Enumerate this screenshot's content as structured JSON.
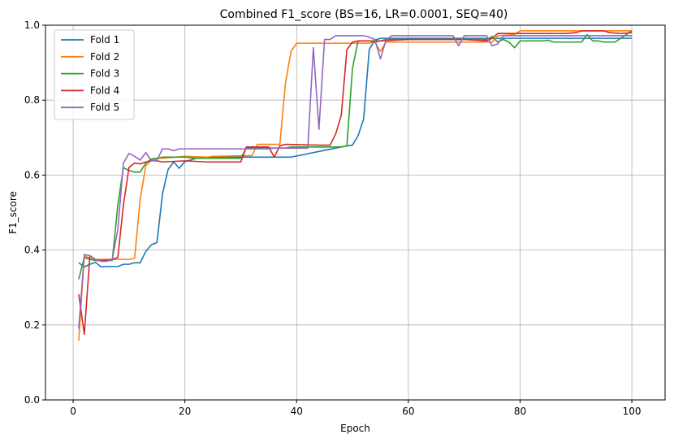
{
  "chart_data": {
    "type": "line",
    "title": "Combined F1_score (BS=16, LR=0.0001, SEQ=40)",
    "xlabel": "Epoch",
    "ylabel": "F1_score",
    "xlim": [
      -4.95,
      105.95
    ],
    "ylim": [
      0.0,
      1.0
    ],
    "xticks": [
      0,
      20,
      40,
      60,
      80,
      100
    ],
    "yticks": [
      0.0,
      0.2,
      0.4,
      0.6,
      0.8,
      1.0
    ],
    "xtick_labels": [
      "0",
      "20",
      "40",
      "60",
      "80",
      "100"
    ],
    "ytick_labels": [
      "0.0",
      "0.2",
      "0.4",
      "0.6",
      "0.8",
      "1.0"
    ],
    "grid": true,
    "legend_position": "top-left",
    "series": [
      {
        "name": "Fold 1",
        "color": "#1f77b4",
        "points": [
          [
            1,
            0.366
          ],
          [
            2,
            0.355
          ],
          [
            3,
            0.362
          ],
          [
            4,
            0.367
          ],
          [
            5,
            0.355
          ],
          [
            6,
            0.356
          ],
          [
            7,
            0.356
          ],
          [
            8,
            0.356
          ],
          [
            9,
            0.362
          ],
          [
            10,
            0.362
          ],
          [
            11,
            0.366
          ],
          [
            12,
            0.366
          ],
          [
            13,
            0.396
          ],
          [
            14,
            0.414
          ],
          [
            15,
            0.42
          ],
          [
            16,
            0.55
          ],
          [
            17,
            0.615
          ],
          [
            18,
            0.635
          ],
          [
            19,
            0.618
          ],
          [
            20,
            0.636
          ],
          [
            21,
            0.64
          ],
          [
            22,
            0.645
          ],
          [
            23,
            0.648
          ],
          [
            24,
            0.648
          ],
          [
            30,
            0.648
          ],
          [
            38,
            0.648
          ],
          [
            39,
            0.648
          ],
          [
            49,
            0.678
          ],
          [
            50,
            0.68
          ],
          [
            51,
            0.705
          ],
          [
            52,
            0.75
          ],
          [
            53,
            0.935
          ],
          [
            54,
            0.96
          ],
          [
            55,
            0.965
          ],
          [
            70,
            0.965
          ],
          [
            75,
            0.965
          ],
          [
            78,
            0.965
          ],
          [
            80,
            0.965
          ],
          [
            90,
            0.965
          ],
          [
            100,
            0.965
          ]
        ]
      },
      {
        "name": "Fold 2",
        "color": "#ff7f0e",
        "points": [
          [
            1,
            0.158
          ],
          [
            2,
            0.385
          ],
          [
            3,
            0.378
          ],
          [
            4,
            0.375
          ],
          [
            5,
            0.375
          ],
          [
            8,
            0.375
          ],
          [
            9,
            0.375
          ],
          [
            10,
            0.375
          ],
          [
            11,
            0.378
          ],
          [
            12,
            0.535
          ],
          [
            13,
            0.625
          ],
          [
            14,
            0.64
          ],
          [
            15,
            0.645
          ],
          [
            16,
            0.645
          ],
          [
            20,
            0.65
          ],
          [
            24,
            0.648
          ],
          [
            25,
            0.65
          ],
          [
            32,
            0.652
          ],
          [
            33,
            0.682
          ],
          [
            37,
            0.682
          ],
          [
            38,
            0.845
          ],
          [
            39,
            0.93
          ],
          [
            40,
            0.952
          ],
          [
            45,
            0.952
          ],
          [
            53,
            0.952
          ],
          [
            54,
            0.955
          ],
          [
            55,
            0.93
          ],
          [
            56,
            0.955
          ],
          [
            60,
            0.955
          ],
          [
            75,
            0.955
          ],
          [
            76,
            0.972
          ],
          [
            79,
            0.975
          ],
          [
            80,
            0.985
          ],
          [
            95,
            0.985
          ],
          [
            100,
            0.985
          ]
        ]
      },
      {
        "name": "Fold 3",
        "color": "#2ca02c",
        "points": [
          [
            1,
            0.322
          ],
          [
            2,
            0.38
          ],
          [
            3,
            0.375
          ],
          [
            4,
            0.372
          ],
          [
            5,
            0.372
          ],
          [
            6,
            0.372
          ],
          [
            7,
            0.372
          ],
          [
            8,
            0.52
          ],
          [
            9,
            0.62
          ],
          [
            10,
            0.612
          ],
          [
            11,
            0.608
          ],
          [
            12,
            0.608
          ],
          [
            13,
            0.632
          ],
          [
            14,
            0.643
          ],
          [
            15,
            0.645
          ],
          [
            16,
            0.648
          ],
          [
            20,
            0.648
          ],
          [
            22,
            0.645
          ],
          [
            25,
            0.645
          ],
          [
            30,
            0.645
          ],
          [
            31,
            0.672
          ],
          [
            38,
            0.672
          ],
          [
            39,
            0.675
          ],
          [
            48,
            0.675
          ],
          [
            49,
            0.678
          ],
          [
            50,
            0.885
          ],
          [
            51,
            0.958
          ],
          [
            55,
            0.958
          ],
          [
            56,
            0.962
          ],
          [
            65,
            0.962
          ],
          [
            74,
            0.962
          ],
          [
            75,
            0.97
          ],
          [
            76,
            0.955
          ],
          [
            77,
            0.962
          ],
          [
            78,
            0.955
          ],
          [
            79,
            0.94
          ],
          [
            80,
            0.958
          ],
          [
            84,
            0.958
          ],
          [
            85,
            0.96
          ],
          [
            86,
            0.955
          ],
          [
            90,
            0.955
          ],
          [
            91,
            0.955
          ],
          [
            92,
            0.975
          ],
          [
            93,
            0.958
          ],
          [
            94,
            0.958
          ],
          [
            95,
            0.955
          ],
          [
            97,
            0.955
          ],
          [
            99,
            0.975
          ],
          [
            100,
            0.985
          ]
        ]
      },
      {
        "name": "Fold 4",
        "color": "#d62728",
        "points": [
          [
            1,
            0.282
          ],
          [
            2,
            0.175
          ],
          [
            3,
            0.385
          ],
          [
            4,
            0.375
          ],
          [
            5,
            0.372
          ],
          [
            7,
            0.375
          ],
          [
            8,
            0.38
          ],
          [
            9,
            0.52
          ],
          [
            10,
            0.62
          ],
          [
            11,
            0.632
          ],
          [
            12,
            0.63
          ],
          [
            13,
            0.635
          ],
          [
            14,
            0.638
          ],
          [
            15,
            0.638
          ],
          [
            16,
            0.635
          ],
          [
            20,
            0.638
          ],
          [
            24,
            0.635
          ],
          [
            30,
            0.635
          ],
          [
            31,
            0.675
          ],
          [
            35,
            0.675
          ],
          [
            36,
            0.648
          ],
          [
            37,
            0.678
          ],
          [
            38,
            0.682
          ],
          [
            44,
            0.68
          ],
          [
            46,
            0.68
          ],
          [
            47,
            0.71
          ],
          [
            48,
            0.76
          ],
          [
            49,
            0.935
          ],
          [
            50,
            0.955
          ],
          [
            51,
            0.958
          ],
          [
            53,
            0.958
          ],
          [
            54,
            0.955
          ],
          [
            55,
            0.958
          ],
          [
            60,
            0.962
          ],
          [
            70,
            0.962
          ],
          [
            74,
            0.958
          ],
          [
            75,
            0.965
          ],
          [
            76,
            0.978
          ],
          [
            80,
            0.978
          ],
          [
            88,
            0.978
          ],
          [
            90,
            0.98
          ],
          [
            91,
            0.985
          ],
          [
            95,
            0.985
          ],
          [
            96,
            0.98
          ],
          [
            98,
            0.978
          ],
          [
            100,
            0.98
          ]
        ]
      },
      {
        "name": "Fold 5",
        "color": "#9467bd",
        "points": [
          [
            1,
            0.19
          ],
          [
            2,
            0.388
          ],
          [
            3,
            0.385
          ],
          [
            4,
            0.375
          ],
          [
            5,
            0.37
          ],
          [
            6,
            0.37
          ],
          [
            7,
            0.375
          ],
          [
            8,
            0.455
          ],
          [
            9,
            0.632
          ],
          [
            10,
            0.658
          ],
          [
            11,
            0.65
          ],
          [
            12,
            0.64
          ],
          [
            13,
            0.66
          ],
          [
            14,
            0.638
          ],
          [
            15,
            0.64
          ],
          [
            16,
            0.67
          ],
          [
            17,
            0.67
          ],
          [
            18,
            0.665
          ],
          [
            19,
            0.67
          ],
          [
            20,
            0.67
          ],
          [
            30,
            0.67
          ],
          [
            31,
            0.67
          ],
          [
            35,
            0.67
          ],
          [
            36,
            0.672
          ],
          [
            42,
            0.672
          ],
          [
            43,
            0.94
          ],
          [
            44,
            0.722
          ],
          [
            45,
            0.962
          ],
          [
            46,
            0.962
          ],
          [
            47,
            0.972
          ],
          [
            50,
            0.972
          ],
          [
            52,
            0.972
          ],
          [
            53,
            0.968
          ],
          [
            54,
            0.962
          ],
          [
            55,
            0.91
          ],
          [
            56,
            0.96
          ],
          [
            57,
            0.972
          ],
          [
            60,
            0.972
          ],
          [
            66,
            0.972
          ],
          [
            68,
            0.972
          ],
          [
            69,
            0.945
          ],
          [
            70,
            0.972
          ],
          [
            74,
            0.972
          ],
          [
            75,
            0.945
          ],
          [
            76,
            0.95
          ],
          [
            77,
            0.972
          ],
          [
            80,
            0.972
          ],
          [
            100,
            0.972
          ]
        ]
      }
    ]
  }
}
